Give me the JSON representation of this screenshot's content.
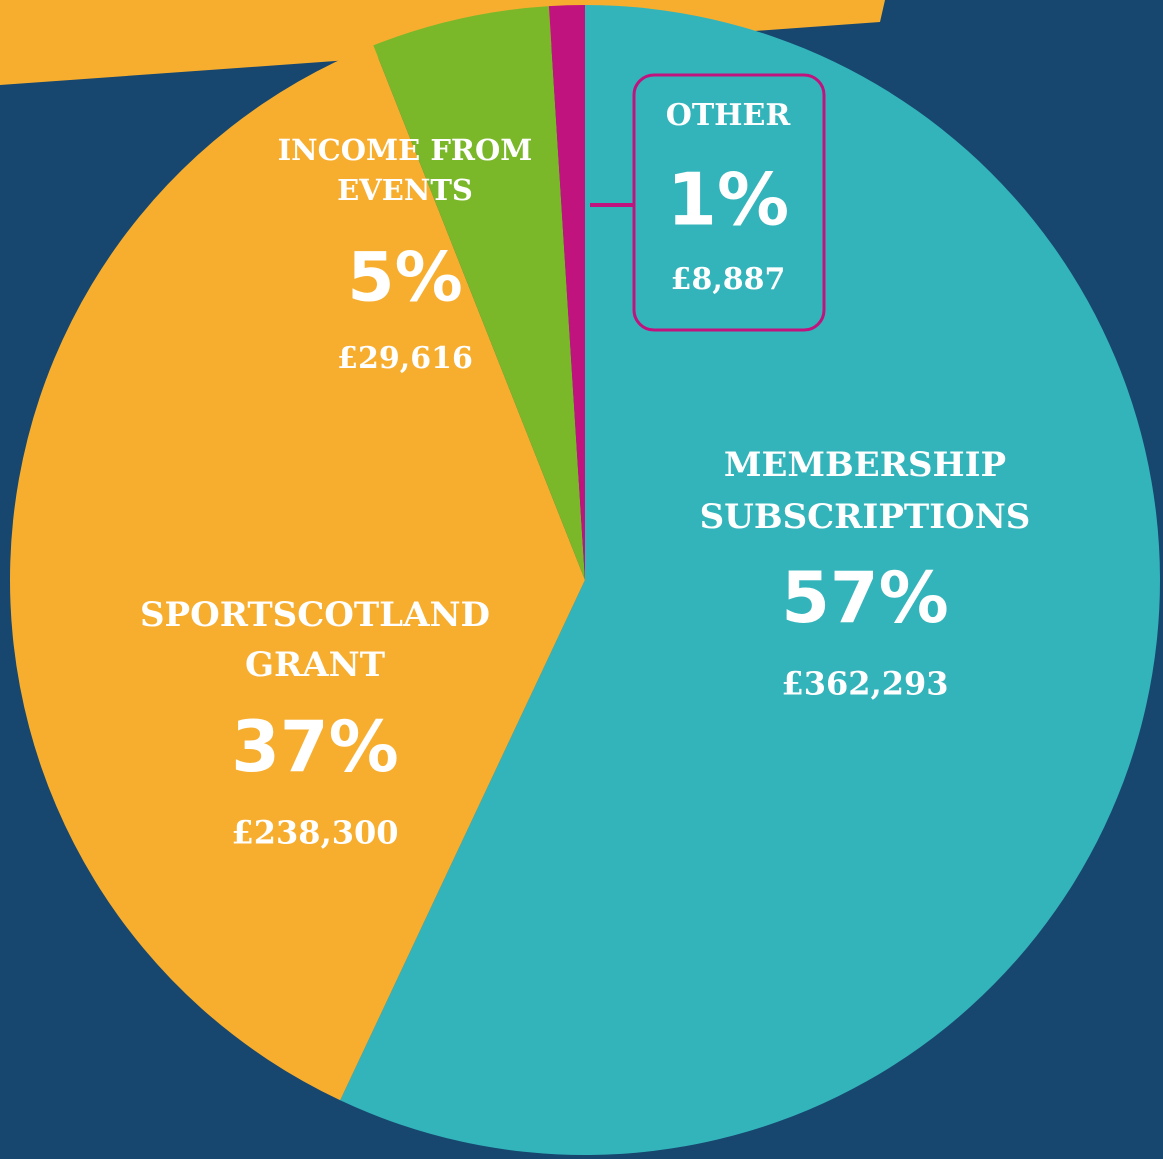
{
  "chart_data": {
    "type": "pie",
    "categories": [
      [
        "MEMBERSHIP",
        "SUBSCRIPTIONS"
      ],
      [
        "SPORTSCOTLAND",
        "GRANT"
      ],
      [
        "INCOME FROM",
        "EVENTS"
      ],
      [
        "OTHER"
      ]
    ],
    "values": [
      57,
      37,
      5,
      1
    ],
    "value_labels": [
      "57%",
      "37%",
      "5%",
      "1%"
    ],
    "amount_labels": [
      "£362,293",
      "£238,300",
      "£29,616",
      "£8,887"
    ],
    "colors": [
      "#33b4bb",
      "#f7ae2f",
      "#7ab82a",
      "#c0137e"
    ]
  }
}
